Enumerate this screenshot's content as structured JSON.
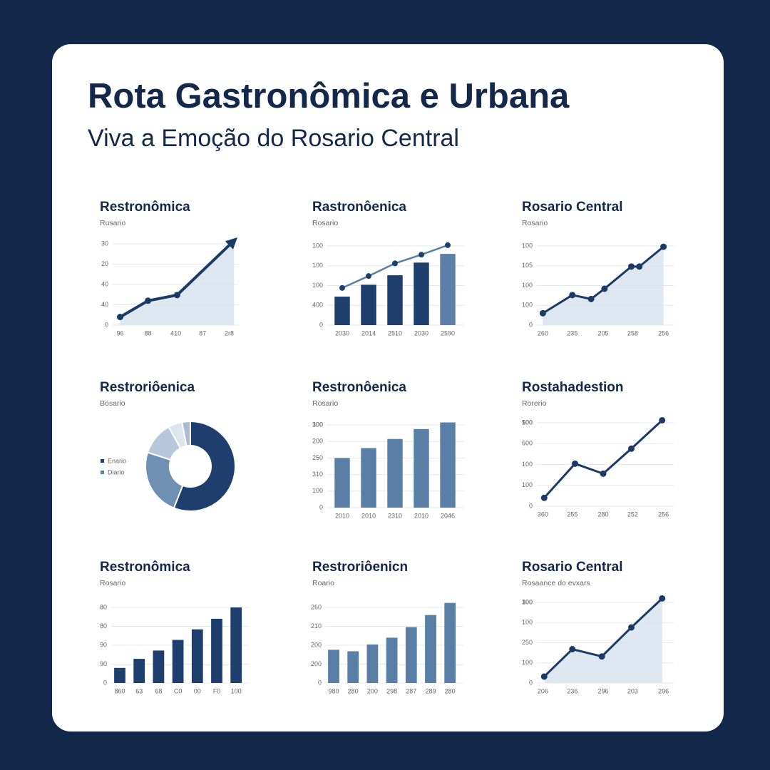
{
  "header": {
    "title": "Rota Gastronômica e Urbana",
    "subtitle": "Viva a Emoção do Rosario Central"
  },
  "chart_data": [
    {
      "type": "line",
      "title": "Restronômica",
      "subtitle": "Rusario",
      "area": true,
      "arrow": true,
      "color": "#1b3a66",
      "x": [
        5,
        28,
        52,
        99
      ],
      "values": [
        10,
        30,
        37,
        104
      ],
      "xlim": [
        0,
        100
      ],
      "ylim": [
        0,
        110
      ],
      "xticks": [
        {
          "value": 5,
          "label": "96"
        },
        {
          "value": 28,
          "label": "88"
        },
        {
          "value": 51,
          "label": "410"
        },
        {
          "value": 73,
          "label": "87"
        },
        {
          "value": 95,
          "label": "2r8"
        }
      ],
      "yticks": [
        0,
        {
          "value": 25,
          "label": "40"
        },
        {
          "value": 50,
          "label": "40"
        },
        {
          "value": 75,
          "label": "20"
        },
        {
          "value": 100,
          "label": "30"
        }
      ]
    },
    {
      "type": "bar_line",
      "title": "Rastronôenica",
      "subtitle": "Rosario",
      "categories": [
        "2030",
        "2014",
        "2510",
        "2030",
        "2590"
      ],
      "values": [
        36,
        51,
        63,
        79,
        90
      ],
      "bar_colors": [
        "#1e3f6e",
        "#1e3f6e",
        "#1e3f6e",
        "#1e3f6e",
        "#5b7fa6"
      ],
      "line_values": [
        47,
        62,
        78,
        89,
        101
      ],
      "line_color": "#5b7fa6",
      "ylim": [
        0,
        110
      ],
      "yticks": [
        0,
        {
          "value": 25,
          "label": "400"
        },
        {
          "value": 50,
          "label": "100"
        },
        100,
        {
          "value": 75,
          "label": "100"
        }
      ]
    },
    {
      "type": "line",
      "title": "Rosario Central",
      "subtitle": "Rosario",
      "area": true,
      "arrow": false,
      "color": "#1b3a66",
      "x": [
        5,
        27,
        41,
        51,
        71,
        77,
        95
      ],
      "values": [
        15,
        38,
        33,
        46,
        74,
        74,
        99
      ],
      "xlim": [
        0,
        100
      ],
      "ylim": [
        0,
        110
      ],
      "xticks": [
        {
          "value": 5,
          "label": "260"
        },
        {
          "value": 27,
          "label": "235"
        },
        {
          "value": 50,
          "label": "205"
        },
        {
          "value": 72,
          "label": "258"
        },
        {
          "value": 95,
          "label": "256"
        }
      ],
      "yticks": [
        0,
        {
          "value": 25,
          "label": "100"
        },
        100,
        {
          "value": 50,
          "label": "100"
        },
        {
          "value": 75,
          "label": "105"
        }
      ]
    },
    {
      "type": "pie",
      "title": "Restroriôenica",
      "subtitle": "Bosario",
      "hole": true,
      "values": [
        56,
        24,
        12,
        5,
        3
      ],
      "colors": [
        "#1e3f6e",
        "#6f8fb3",
        "#b7c8dc",
        "#dde5ef",
        "#a9bcd3"
      ],
      "legend": [
        "Enario",
        "Diario"
      ],
      "legend_colors": [
        "#1e3f6e",
        "#5b7fa6"
      ]
    },
    {
      "type": "bar",
      "title": "Restronôenica",
      "subtitle": "Rosario",
      "color": "#5a7fa6",
      "categories": [
        "2010",
        "2010",
        "2310",
        "2010",
        "2046"
      ],
      "values": [
        60,
        72,
        83,
        95,
        103
      ],
      "ylim": [
        0,
        110
      ],
      "yticks": [
        0,
        100,
        {
          "value": 20,
          "label": "100"
        },
        {
          "value": 40,
          "label": "310"
        },
        {
          "value": 60,
          "label": "250"
        },
        {
          "value": 80,
          "label": "200"
        },
        {
          "value": 100,
          "label": "300"
        }
      ]
    },
    {
      "type": "line",
      "title": "Rostahadestion",
      "subtitle": "Rorerio",
      "area": false,
      "arrow": false,
      "color": "#1b3a66",
      "x": [
        6,
        29,
        50,
        71,
        94
      ],
      "values": [
        10,
        51,
        39,
        69,
        103
      ],
      "xlim": [
        0,
        100
      ],
      "ylim": [
        0,
        110
      ],
      "xticks": [
        {
          "value": 5,
          "label": "360"
        },
        {
          "value": 27,
          "label": "255"
        },
        {
          "value": 50,
          "label": "280"
        },
        {
          "value": 72,
          "label": "252"
        },
        {
          "value": 95,
          "label": "256"
        }
      ],
      "yticks": [
        0,
        100,
        {
          "value": 25,
          "label": "100"
        },
        {
          "value": 50,
          "label": "100"
        },
        {
          "value": 75,
          "label": "600"
        },
        {
          "value": 100,
          "label": "500"
        }
      ]
    },
    {
      "type": "bar",
      "title": "Restronômica",
      "subtitle": "Rosario",
      "color": "#1e3f6e",
      "categories": [
        "860",
        "63",
        "68",
        "C0",
        "00",
        "F0",
        "100"
      ],
      "values": [
        20,
        32,
        43,
        57,
        71,
        85,
        100
      ],
      "ylim": [
        0,
        110
      ],
      "yticks": [
        0,
        {
          "value": 25,
          "label": "90"
        },
        {
          "value": 50,
          "label": "90"
        },
        {
          "value": 75,
          "label": "80"
        },
        {
          "value": 100,
          "label": "80"
        }
      ]
    },
    {
      "type": "bar",
      "title": "Restroriôenicn",
      "subtitle": "Roario",
      "color": "#5a7fa6",
      "categories": [
        "980",
        "280",
        "200",
        "298",
        "287",
        "289",
        "280"
      ],
      "values": [
        44,
        42,
        51,
        60,
        74,
        90,
        106
      ],
      "ylim": [
        0,
        110
      ],
      "yticks": [
        0,
        {
          "value": 25,
          "label": "200"
        },
        {
          "value": 50,
          "label": "200"
        },
        {
          "value": 75,
          "label": "210"
        },
        {
          "value": 100,
          "label": "260"
        }
      ]
    },
    {
      "type": "line",
      "title": "Rosario Central",
      "subtitle": "Rosaance do evxars",
      "area": true,
      "arrow": false,
      "color": "#1b3a66",
      "x": [
        6,
        27,
        49,
        71,
        94
      ],
      "values": [
        8,
        42,
        33,
        69,
        105
      ],
      "xlim": [
        0,
        100
      ],
      "ylim": [
        0,
        110
      ],
      "xticks": [
        {
          "value": 5,
          "label": "206"
        },
        {
          "value": 27,
          "label": "236"
        },
        {
          "value": 50,
          "label": "296"
        },
        {
          "value": 72,
          "label": "203"
        },
        {
          "value": 95,
          "label": "296"
        }
      ],
      "yticks": [
        0,
        100,
        {
          "value": 25,
          "label": "100"
        },
        {
          "value": 50,
          "label": "250"
        },
        {
          "value": 75,
          "label": "100"
        },
        {
          "value": 100,
          "label": "300"
        }
      ]
    }
  ]
}
